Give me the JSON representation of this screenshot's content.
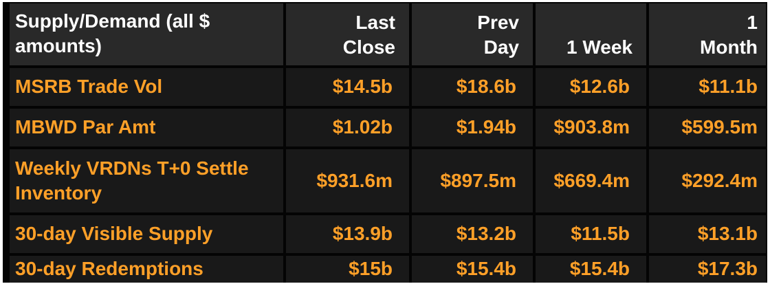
{
  "colors": {
    "amber_text": "#ffa028",
    "header_text": "#ffffff",
    "header_bg": "#292929",
    "cell_bg": "#191919",
    "grid_lines": "#040404",
    "page_border": "#ffffff"
  },
  "chart_data": {
    "type": "table",
    "title": "Supply/Demand (all $ amounts)",
    "columns": [
      "Last\nClose",
      "Prev\nDay",
      "1 Week",
      "1\nMonth"
    ],
    "rows": [
      {
        "label": "MSRB Trade Vol",
        "values": [
          "$14.5b",
          "$18.6b",
          "$12.6b",
          "$11.1b"
        ]
      },
      {
        "label": "MBWD Par Amt",
        "values": [
          "$1.02b",
          "$1.94b",
          "$903.8m",
          "$599.5m"
        ]
      },
      {
        "label": "Weekly VRDNs T+0 Settle Inventory",
        "values": [
          "$931.6m",
          "$897.5m",
          "$669.4m",
          "$292.4m"
        ]
      },
      {
        "label": "30-day Visible Supply",
        "values": [
          "$13.9b",
          "$13.2b",
          "$11.5b",
          "$13.1b"
        ]
      },
      {
        "label": "30-day Redemptions",
        "values": [
          "$15b",
          "$15.4b",
          "$15.4b",
          "$17.3b"
        ]
      }
    ]
  }
}
